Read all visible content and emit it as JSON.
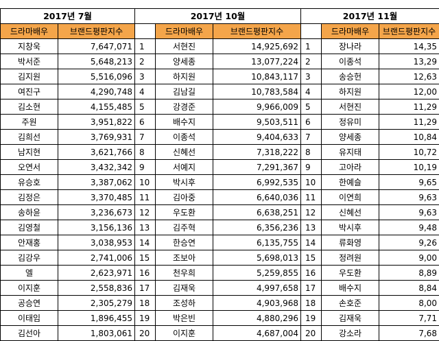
{
  "sections": [
    {
      "period": "2017년 7월",
      "header_actor": "드라마배우",
      "header_index": "브랜드평판지수",
      "rows": [
        {
          "name": "지창욱",
          "value": "7,647,071"
        },
        {
          "name": "박서준",
          "value": "5,648,213"
        },
        {
          "name": "김지원",
          "value": "5,516,096"
        },
        {
          "name": "여진구",
          "value": "4,290,748"
        },
        {
          "name": "김소현",
          "value": "4,155,485"
        },
        {
          "name": "주원",
          "value": "3,951,822"
        },
        {
          "name": "김희선",
          "value": "3,769,931"
        },
        {
          "name": "남지현",
          "value": "3,621,766"
        },
        {
          "name": "오연서",
          "value": "3,432,342"
        },
        {
          "name": "유승호",
          "value": "3,387,062"
        },
        {
          "name": "김정은",
          "value": "3,370,485"
        },
        {
          "name": "송하윤",
          "value": "3,236,673"
        },
        {
          "name": "김영철",
          "value": "3,156,136"
        },
        {
          "name": "안재홍",
          "value": "3,038,953"
        },
        {
          "name": "김강우",
          "value": "2,741,006"
        },
        {
          "name": "엘",
          "value": "2,623,971"
        },
        {
          "name": "이지훈",
          "value": "2,558,836"
        },
        {
          "name": "공승연",
          "value": "2,305,279"
        },
        {
          "name": "이태임",
          "value": "1,896,455"
        },
        {
          "name": "김선아",
          "value": "1,803,061"
        }
      ]
    },
    {
      "period": "2017년 10월",
      "header_actor": "드라마배우",
      "header_index": "브랜드평판지수",
      "rows": [
        {
          "rank": "1",
          "name": "서현진",
          "value": "14,925,692"
        },
        {
          "rank": "2",
          "name": "양세종",
          "value": "13,077,224"
        },
        {
          "rank": "3",
          "name": "하지원",
          "value": "10,843,117"
        },
        {
          "rank": "4",
          "name": "김남길",
          "value": "10,783,584"
        },
        {
          "rank": "5",
          "name": "강경준",
          "value": "9,966,009"
        },
        {
          "rank": "6",
          "name": "배수지",
          "value": "9,503,511"
        },
        {
          "rank": "7",
          "name": "이종석",
          "value": "9,404,633"
        },
        {
          "rank": "8",
          "name": "신혜선",
          "value": "7,318,222"
        },
        {
          "rank": "9",
          "name": "서예지",
          "value": "7,291,367"
        },
        {
          "rank": "10",
          "name": "박시후",
          "value": "6,992,535"
        },
        {
          "rank": "11",
          "name": "김아중",
          "value": "6,640,036"
        },
        {
          "rank": "12",
          "name": "우도환",
          "value": "6,638,251"
        },
        {
          "rank": "13",
          "name": "김주혁",
          "value": "6,356,236"
        },
        {
          "rank": "14",
          "name": "한승연",
          "value": "6,135,755"
        },
        {
          "rank": "15",
          "name": "조보아",
          "value": "5,698,013"
        },
        {
          "rank": "16",
          "name": "천우희",
          "value": "5,259,855"
        },
        {
          "rank": "17",
          "name": "김재욱",
          "value": "4,997,658"
        },
        {
          "rank": "18",
          "name": "조성하",
          "value": "4,903,968"
        },
        {
          "rank": "19",
          "name": "박은빈",
          "value": "4,880,296"
        },
        {
          "rank": "20",
          "name": "이지훈",
          "value": "4,687,004"
        }
      ]
    },
    {
      "period": "2017년 11월",
      "header_actor": "드라마배우",
      "header_index": "브랜드평판지수",
      "rows": [
        {
          "rank": "1",
          "name": "장나라",
          "value": "14,35"
        },
        {
          "rank": "2",
          "name": "이종석",
          "value": "13,29"
        },
        {
          "rank": "3",
          "name": "송승헌",
          "value": "12,63"
        },
        {
          "rank": "4",
          "name": "하지원",
          "value": "12,00"
        },
        {
          "rank": "5",
          "name": "서현진",
          "value": "11,29"
        },
        {
          "rank": "6",
          "name": "정유미",
          "value": "11,29"
        },
        {
          "rank": "7",
          "name": "양세종",
          "value": "10,84"
        },
        {
          "rank": "8",
          "name": "유지태",
          "value": "10,72"
        },
        {
          "rank": "9",
          "name": "고아라",
          "value": "10,19"
        },
        {
          "rank": "10",
          "name": "한예슬",
          "value": "9,65"
        },
        {
          "rank": "11",
          "name": "이연희",
          "value": "9,63"
        },
        {
          "rank": "12",
          "name": "신혜선",
          "value": "9,63"
        },
        {
          "rank": "13",
          "name": "박시후",
          "value": "9,48"
        },
        {
          "rank": "14",
          "name": "류화영",
          "value": "9,26"
        },
        {
          "rank": "15",
          "name": "정려원",
          "value": "9,00"
        },
        {
          "rank": "16",
          "name": "우도환",
          "value": "8,89"
        },
        {
          "rank": "17",
          "name": "배수지",
          "value": "8,84"
        },
        {
          "rank": "18",
          "name": "손호준",
          "value": "8,00"
        },
        {
          "rank": "19",
          "name": "김재욱",
          "value": "7,71"
        },
        {
          "rank": "20",
          "name": "강소라",
          "value": "7,68"
        }
      ]
    }
  ],
  "colors": {
    "header_fill": "#f4a54a"
  }
}
